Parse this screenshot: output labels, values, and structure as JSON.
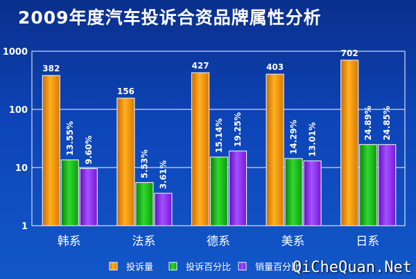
{
  "title": "2009年度汽车投诉合资品牌属性分析",
  "watermark": "QiCheQuan.Net",
  "colors": {
    "complaints": "#f08c00",
    "complaint_pct": "#17b317",
    "sales_pct": "#8a1ef0"
  },
  "chart_data": {
    "type": "bar",
    "scale": "log",
    "ylim": [
      1,
      1000
    ],
    "yticks": [
      "1",
      "10",
      "100",
      "1000"
    ],
    "grid": true,
    "legend_position": "bottom",
    "categories": [
      "韩系",
      "法系",
      "德系",
      "美系",
      "日系"
    ],
    "series": [
      {
        "name": "投诉量",
        "values": [
          382,
          156,
          427,
          403,
          702
        ],
        "labels": [
          "382",
          "156",
          "427",
          "403",
          "702"
        ]
      },
      {
        "name": "投诉百分比",
        "values": [
          13.55,
          5.53,
          15.14,
          14.29,
          24.89
        ],
        "labels": [
          "13.55%",
          "5.53%",
          "15.14%",
          "14.29%",
          "24.89%"
        ]
      },
      {
        "name": "销量百分比",
        "values": [
          9.6,
          3.61,
          19.25,
          13.01,
          24.85
        ],
        "labels": [
          "9.60%",
          "3.61%",
          "19.25%",
          "13.01%",
          "24.85%"
        ]
      }
    ]
  }
}
